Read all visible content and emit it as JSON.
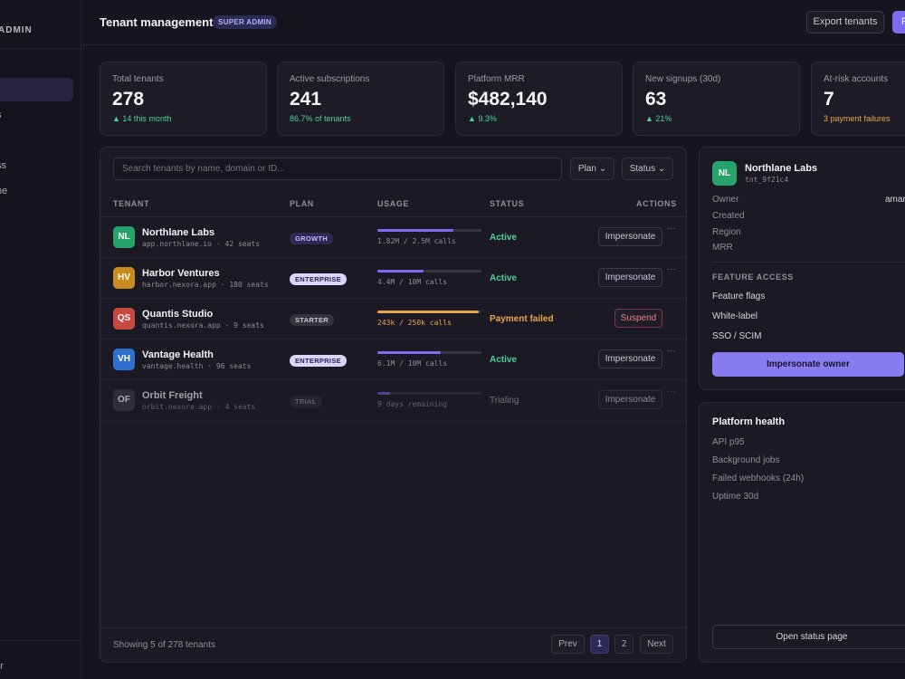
{
  "sidebar": {
    "brand": "ADMIN",
    "items": [
      "",
      "s",
      "",
      "ss",
      "ne"
    ],
    "footer": "er"
  },
  "header": {
    "title": "Tenant management",
    "role_badge": "SUPER ADMIN",
    "export_label": "Export tenants",
    "primary_label": "F"
  },
  "stats": [
    {
      "label": "Total tenants",
      "value": "278",
      "sub": "▲ 14 this month",
      "tone": "green"
    },
    {
      "label": "Active subscriptions",
      "value": "241",
      "sub": "86.7% of tenants",
      "tone": "green"
    },
    {
      "label": "Platform MRR",
      "value": "$482,140",
      "sub": "▲ 9.3%",
      "tone": "green"
    },
    {
      "label": "New signups (30d)",
      "value": "63",
      "sub": "▲ 21%",
      "tone": "green"
    },
    {
      "label": "At-risk accounts",
      "value": "7",
      "sub": "3 payment failures",
      "tone": "amber"
    }
  ],
  "table": {
    "search_placeholder": "Search tenants by name, domain or ID...",
    "filter_plan": "Plan ⌄",
    "filter_status": "Status ⌄",
    "columns": [
      "TENANT",
      "PLAN",
      "USAGE",
      "STATUS",
      "ACTIONS"
    ],
    "rows": [
      {
        "initials": "NL",
        "avatar_color": "#25a36a",
        "name": "Northlane Labs",
        "meta": "app.northlane.io · 42 seats",
        "plan": "GROWTH",
        "usage_fraction": 0.73,
        "bar_color": "#7d6bf0",
        "usage": "1.82M / 2.5M calls",
        "status": "Active",
        "status_color": "#4fd19b",
        "action": "Impersonate"
      },
      {
        "initials": "HV",
        "avatar_color": "#c98a1e",
        "name": "Harbor Ventures",
        "meta": "harbor.nexora.app · 180 seats",
        "plan": "ENTERPRISE",
        "usage_fraction": 0.44,
        "bar_color": "#7d6bf0",
        "usage": "4.4M / 10M calls",
        "status": "Active",
        "status_color": "#4fd19b",
        "action": "Impersonate"
      },
      {
        "initials": "QS",
        "avatar_color": "#c8473f",
        "name": "Quantis Studio",
        "meta": "quantis.nexora.app · 9 seats",
        "plan": "STARTER",
        "usage_fraction": 0.97,
        "bar_color": "#e8a64a",
        "usage": "243k / 250k calls",
        "status": "Payment failed",
        "status_color": "#e8a64a",
        "action": "Suspend"
      },
      {
        "initials": "VH",
        "avatar_color": "#2f6fd0",
        "name": "Vantage Health",
        "meta": "vantage.health · 96 seats",
        "plan": "ENTERPRISE",
        "usage_fraction": 0.61,
        "bar_color": "#7d6bf0",
        "usage": "6.1M / 10M calls",
        "status": "Active",
        "status_color": "#4fd19b",
        "action": "Impersonate"
      },
      {
        "initials": "OF",
        "avatar_color": "#3a3947",
        "name": "Orbit Freight",
        "meta": "orbit.nexora.app · 4 seats",
        "plan": "TRIAL",
        "usage_fraction": 0.12,
        "bar_color": "#6b5dd0",
        "usage": "9 days remaining",
        "status": "Trialing",
        "status_color": "#8e8c9f",
        "action": "Impersonate"
      }
    ],
    "footer_text": "Showing 5 of 278 tenants",
    "pager": {
      "prev": "Prev",
      "pages": [
        "1",
        "2"
      ],
      "next": "Next"
    }
  },
  "detail": {
    "initials": "NL",
    "name": "Northlane Labs",
    "id": "tnt_9f21c4",
    "fields": [
      {
        "label": "Owner",
        "value": "amar"
      },
      {
        "label": "Created",
        "value": ""
      },
      {
        "label": "Region",
        "value": ""
      },
      {
        "label": "MRR",
        "value": ""
      }
    ],
    "section_title": "FEATURE ACCESS",
    "features": [
      "Feature flags",
      "White-label",
      "SSO / SCIM"
    ],
    "impersonate_owner": "Impersonate owner"
  },
  "health": {
    "title": "Platform health",
    "items": [
      "API p95",
      "Background jobs",
      "Failed webhooks (24h)",
      "Uptime 30d"
    ],
    "status_button": "Open status page"
  }
}
